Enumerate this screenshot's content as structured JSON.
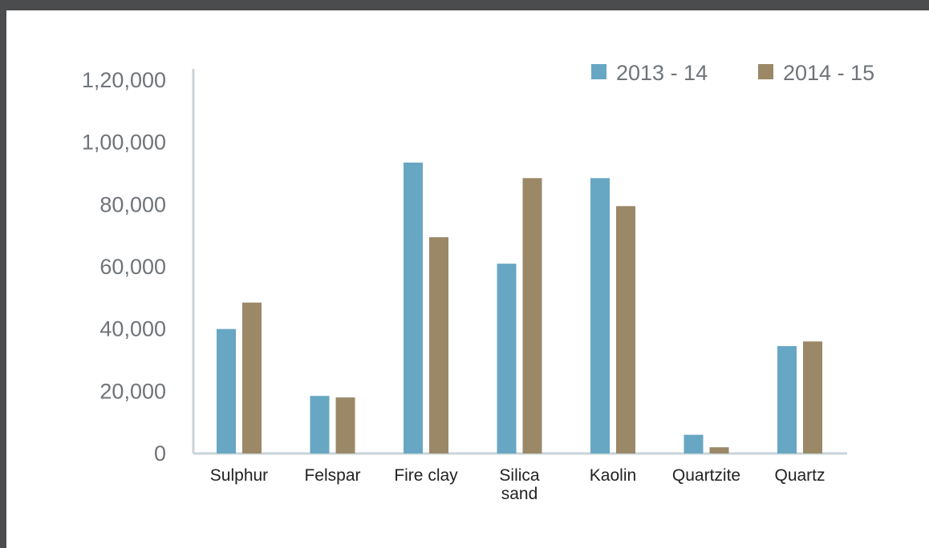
{
  "colors": {
    "series_1": "#67a7c3",
    "series_2": "#9a8867",
    "axis": "#c9d3da",
    "background": "#ffffff",
    "frame": "#4a4c4e"
  },
  "chart_data": {
    "type": "bar",
    "categories": [
      [
        "Sulphur"
      ],
      [
        "Felspar"
      ],
      [
        "Fire clay"
      ],
      [
        "Silica",
        "sand"
      ],
      [
        "Kaolin"
      ],
      [
        "Quartzite"
      ],
      [
        "Quartz"
      ]
    ],
    "series": [
      {
        "name": "2013 - 14",
        "values": [
          40000,
          18500,
          93500,
          61000,
          88500,
          6000,
          34500
        ]
      },
      {
        "name": "2014 - 15",
        "values": [
          48500,
          18000,
          69500,
          88500,
          79500,
          2000,
          36000
        ]
      }
    ],
    "ylim": [
      0,
      120000
    ],
    "yticks": [
      {
        "value": 0,
        "label": "0"
      },
      {
        "value": 20000,
        "label": "20,000"
      },
      {
        "value": 40000,
        "label": "40,000"
      },
      {
        "value": 60000,
        "label": "60,000"
      },
      {
        "value": 80000,
        "label": "80,000"
      },
      {
        "value": 100000,
        "label": "1,00,000"
      },
      {
        "value": 120000,
        "label": "1,20,000"
      }
    ],
    "title": "",
    "xlabel": "",
    "ylabel": "",
    "grid": false,
    "legend_position": "top-right"
  }
}
